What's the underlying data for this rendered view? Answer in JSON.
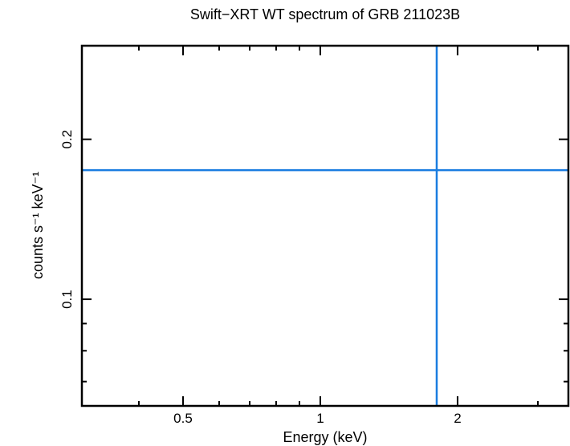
{
  "chart_data": {
    "type": "scatter",
    "title": "Swift−XRT WT spectrum of GRB 211023B",
    "xlabel": "Energy (keV)",
    "ylabel": "counts s⁻¹ keV⁻¹",
    "x_scale": "log",
    "y_scale": "log",
    "xlim": [
      0.3,
      3.5
    ],
    "ylim": [
      0.063,
      0.3
    ],
    "x_ticks": [
      {
        "value": 0.5,
        "label": "0.5"
      },
      {
        "value": 1,
        "label": "1"
      },
      {
        "value": 2,
        "label": "2"
      }
    ],
    "y_ticks": [
      {
        "value": 0.1,
        "label": "0.1"
      },
      {
        "value": 0.2,
        "label": "0.2"
      }
    ],
    "grid": false,
    "series": [
      {
        "color": "#1a7de0",
        "points": [
          {
            "x": 1.8,
            "y": 0.175,
            "x_err": [
              0.3,
              3.5
            ],
            "y_err": [
              0.063,
              0.3
            ]
          }
        ]
      }
    ]
  }
}
